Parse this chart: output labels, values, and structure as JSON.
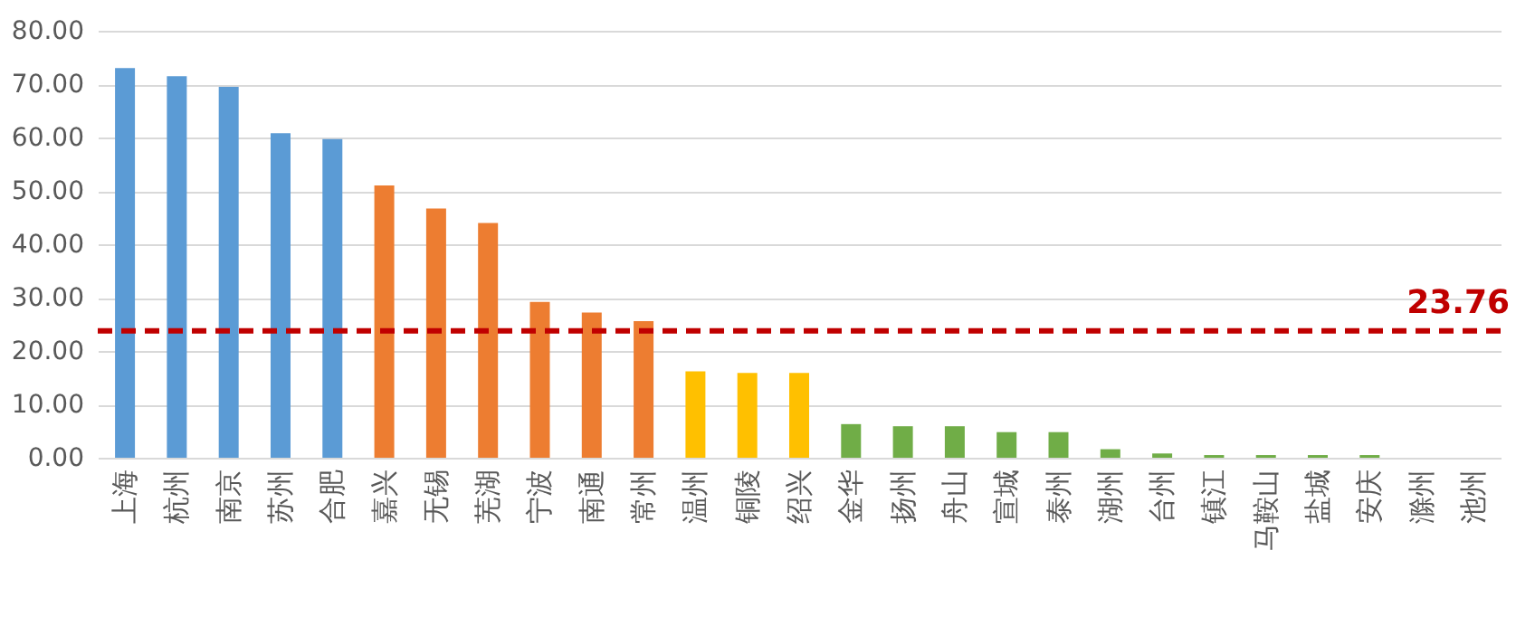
{
  "chart_data": {
    "type": "bar",
    "categories": [
      "上海",
      "杭州",
      "南京",
      "苏州",
      "合肥",
      "嘉兴",
      "无锡",
      "芜湖",
      "宁波",
      "南通",
      "常州",
      "温州",
      "铜陵",
      "绍兴",
      "金华",
      "扬州",
      "舟山",
      "宣城",
      "泰州",
      "湖州",
      "台州",
      "镇江",
      "马鞍山",
      "盐城",
      "安庆",
      "滁州",
      "池州"
    ],
    "values": [
      73,
      71.5,
      69.5,
      60.8,
      59.7,
      51,
      46.7,
      44,
      29.2,
      27.2,
      25.6,
      16.2,
      15.9,
      15.9,
      6.3,
      5.9,
      5.9,
      4.8,
      4.8,
      1.6,
      0.8,
      0.5,
      0.5,
      0.5,
      0.5,
      0,
      0
    ],
    "colors": [
      "#5b9bd5",
      "#5b9bd5",
      "#5b9bd5",
      "#5b9bd5",
      "#5b9bd5",
      "#ed7d31",
      "#ed7d31",
      "#ed7d31",
      "#ed7d31",
      "#ed7d31",
      "#ed7d31",
      "#ffc000",
      "#ffc000",
      "#ffc000",
      "#70ad47",
      "#70ad47",
      "#70ad47",
      "#70ad47",
      "#70ad47",
      "#70ad47",
      "#70ad47",
      "#70ad47",
      "#70ad47",
      "#70ad47",
      "#70ad47",
      "#70ad47",
      "#70ad47"
    ],
    "ylim": [
      0,
      80
    ],
    "yticks": [
      {
        "value": 0,
        "label": "0.00"
      },
      {
        "value": 10,
        "label": "10.00"
      },
      {
        "value": 20,
        "label": "20.00"
      },
      {
        "value": 30,
        "label": "30.00"
      },
      {
        "value": 40,
        "label": "40.00"
      },
      {
        "value": 50,
        "label": "50.00"
      },
      {
        "value": 60,
        "label": "60.00"
      },
      {
        "value": 70,
        "label": "70.00"
      },
      {
        "value": 80,
        "label": "80.00"
      }
    ],
    "grid": "y",
    "ref_lines": [
      {
        "axis": "y",
        "value": 23.76,
        "label": "23.76",
        "color": "#c00000",
        "line_style": "dashed"
      }
    ]
  }
}
